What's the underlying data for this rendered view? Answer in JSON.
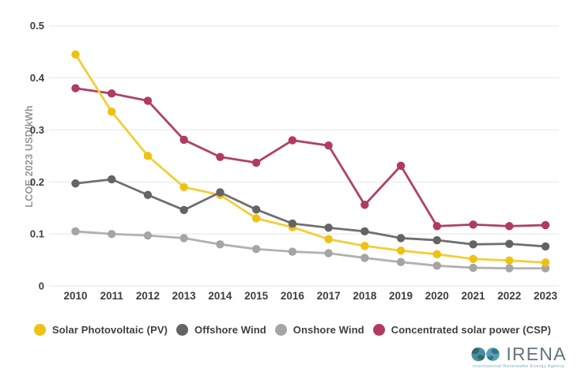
{
  "chart_data": {
    "type": "line",
    "title": "",
    "xlabel": "",
    "ylabel": "LCOE 2023 USD/kWh",
    "ylim": [
      0,
      0.5
    ],
    "yticks": [
      0,
      0.1,
      0.2,
      0.3,
      0.4,
      0.5
    ],
    "ytick_labels": [
      "0",
      "0.1",
      "0.2",
      "0.3",
      "0.4",
      "0.5"
    ],
    "grid": true,
    "legend_position": "bottom",
    "categories": [
      "2010",
      "2011",
      "2012",
      "2013",
      "2014",
      "2015",
      "2016",
      "2017",
      "2018",
      "2019",
      "2020",
      "2021",
      "2022",
      "2023"
    ],
    "series": [
      {
        "id": "solar-pv",
        "name": "Solar Photovoltaic (PV)",
        "color": "#EEC113",
        "line_color": "#F2CE39",
        "values": [
          0.445,
          0.335,
          0.25,
          0.19,
          0.175,
          0.13,
          0.113,
          0.09,
          0.077,
          0.068,
          0.061,
          0.052,
          0.049,
          0.045
        ]
      },
      {
        "id": "offshore-wind",
        "name": "Offshore Wind",
        "color": "#646464",
        "line_color": "#6F6F6F",
        "values": [
          0.197,
          0.205,
          0.175,
          0.146,
          0.18,
          0.147,
          0.12,
          0.112,
          0.105,
          0.092,
          0.088,
          0.08,
          0.081,
          0.076
        ]
      },
      {
        "id": "onshore-wind",
        "name": "Onshore Wind",
        "color": "#A5A5A5",
        "line_color": "#B1B1B1",
        "values": [
          0.105,
          0.1,
          0.097,
          0.092,
          0.08,
          0.071,
          0.066,
          0.063,
          0.054,
          0.046,
          0.039,
          0.035,
          0.034,
          0.034
        ]
      },
      {
        "id": "csp",
        "name": "Concentrated solar power (CSP)",
        "color": "#B23A60",
        "line_color": "#B04164",
        "values": [
          0.38,
          0.37,
          0.356,
          0.281,
          0.248,
          0.237,
          0.28,
          0.27,
          0.156,
          0.231,
          0.115,
          0.118,
          0.115,
          0.117
        ]
      }
    ]
  },
  "colors": {
    "background": "#FFFFFF",
    "grid": "#E5E5E5",
    "axis_text": "#3E3E3E",
    "ylabel_text": "#979797",
    "legend_text": "#3F3F3F",
    "logo_text": "#65727C",
    "logo_subtitle": "#79B2C6"
  },
  "branding": {
    "logo_text": "IRENA",
    "logo_subtitle": "International Renewable Energy Agency"
  }
}
